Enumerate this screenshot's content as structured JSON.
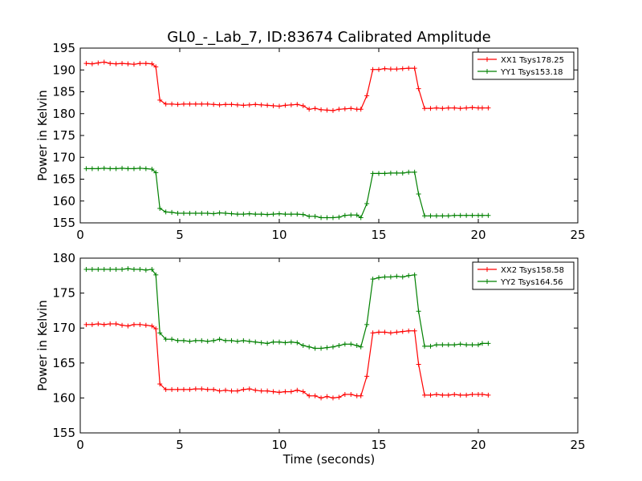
{
  "title": "GL0_-_Lab_7, ID:83674 Calibrated Amplitude",
  "chart_data": [
    {
      "type": "line",
      "xlabel": "",
      "ylabel": "Power in Kelvin",
      "xlim": [
        0,
        25
      ],
      "ylim": [
        155,
        195
      ],
      "xticks": [
        0,
        5,
        10,
        15,
        20,
        25
      ],
      "yticks": [
        155,
        160,
        165,
        170,
        175,
        180,
        185,
        190,
        195
      ],
      "grid": false,
      "legend_position": "top-right",
      "x": [
        0.3,
        0.6,
        0.9,
        1.2,
        1.5,
        1.8,
        2.1,
        2.4,
        2.7,
        3.0,
        3.3,
        3.6,
        3.8,
        4.0,
        4.3,
        4.6,
        4.9,
        5.2,
        5.5,
        5.8,
        6.1,
        6.4,
        6.7,
        7.0,
        7.3,
        7.6,
        7.9,
        8.2,
        8.5,
        8.8,
        9.1,
        9.4,
        9.7,
        10.0,
        10.3,
        10.6,
        10.9,
        11.2,
        11.5,
        11.8,
        12.1,
        12.4,
        12.7,
        13.0,
        13.3,
        13.6,
        13.9,
        14.1,
        14.4,
        14.7,
        15.0,
        15.3,
        15.6,
        15.9,
        16.2,
        16.5,
        16.8,
        17.0,
        17.3,
        17.6,
        17.9,
        18.2,
        18.5,
        18.8,
        19.1,
        19.4,
        19.7,
        20.0,
        20.2,
        20.5
      ],
      "series": [
        {
          "name": "XX1 Tsys178.25",
          "color": "#ff0000",
          "values": [
            191.5,
            191.4,
            191.6,
            191.8,
            191.5,
            191.4,
            191.5,
            191.4,
            191.3,
            191.5,
            191.5,
            191.4,
            190.7,
            183.1,
            182.2,
            182.2,
            182.1,
            182.2,
            182.2,
            182.2,
            182.2,
            182.2,
            182.1,
            182.0,
            182.1,
            182.1,
            182.0,
            181.9,
            182.0,
            182.1,
            182.0,
            181.9,
            181.8,
            181.7,
            181.9,
            182.0,
            182.1,
            181.8,
            181.0,
            181.2,
            180.9,
            180.8,
            180.7,
            181.0,
            181.1,
            181.2,
            181.0,
            181.0,
            184.1,
            190.1,
            190.1,
            190.3,
            190.2,
            190.2,
            190.3,
            190.4,
            190.4,
            185.7,
            181.2,
            181.2,
            181.3,
            181.2,
            181.3,
            181.3,
            181.2,
            181.3,
            181.4,
            181.3,
            181.3,
            181.3
          ]
        },
        {
          "name": "YY1 Tsys153.18",
          "color": "#008000",
          "values": [
            167.4,
            167.4,
            167.4,
            167.5,
            167.4,
            167.4,
            167.5,
            167.4,
            167.4,
            167.5,
            167.4,
            167.3,
            166.5,
            158.3,
            157.5,
            157.4,
            157.2,
            157.2,
            157.2,
            157.2,
            157.2,
            157.2,
            157.1,
            157.3,
            157.2,
            157.1,
            157.0,
            157.0,
            157.1,
            157.0,
            157.0,
            156.9,
            157.0,
            157.1,
            157.0,
            157.0,
            157.0,
            156.9,
            156.5,
            156.5,
            156.2,
            156.2,
            156.2,
            156.3,
            156.7,
            156.8,
            156.8,
            156.2,
            159.4,
            166.3,
            166.3,
            166.3,
            166.4,
            166.4,
            166.4,
            166.6,
            166.6,
            161.6,
            156.6,
            156.6,
            156.6,
            156.6,
            156.6,
            156.7,
            156.7,
            156.7,
            156.7,
            156.7,
            156.7,
            156.7
          ]
        }
      ]
    },
    {
      "type": "line",
      "xlabel": "Time (seconds)",
      "ylabel": "Power in Kelvin",
      "xlim": [
        0,
        25
      ],
      "ylim": [
        155,
        180
      ],
      "xticks": [
        0,
        5,
        10,
        15,
        20,
        25
      ],
      "yticks": [
        155,
        160,
        165,
        170,
        175,
        180
      ],
      "grid": false,
      "legend_position": "top-right",
      "x": [
        0.3,
        0.6,
        0.9,
        1.2,
        1.5,
        1.8,
        2.1,
        2.4,
        2.7,
        3.0,
        3.3,
        3.6,
        3.8,
        4.0,
        4.3,
        4.6,
        4.9,
        5.2,
        5.5,
        5.8,
        6.1,
        6.4,
        6.7,
        7.0,
        7.3,
        7.6,
        7.9,
        8.2,
        8.5,
        8.8,
        9.1,
        9.4,
        9.7,
        10.0,
        10.3,
        10.6,
        10.9,
        11.2,
        11.5,
        11.8,
        12.1,
        12.4,
        12.7,
        13.0,
        13.3,
        13.6,
        13.9,
        14.1,
        14.4,
        14.7,
        15.0,
        15.3,
        15.6,
        15.9,
        16.2,
        16.5,
        16.8,
        17.0,
        17.3,
        17.6,
        17.9,
        18.2,
        18.5,
        18.8,
        19.1,
        19.4,
        19.7,
        20.0,
        20.2,
        20.5
      ],
      "series": [
        {
          "name": "XX2 Tsys158.58",
          "color": "#ff0000",
          "values": [
            170.5,
            170.5,
            170.6,
            170.5,
            170.6,
            170.6,
            170.4,
            170.3,
            170.5,
            170.5,
            170.4,
            170.3,
            169.9,
            162.0,
            161.2,
            161.2,
            161.2,
            161.2,
            161.2,
            161.3,
            161.3,
            161.2,
            161.2,
            161.0,
            161.1,
            161.0,
            161.0,
            161.2,
            161.3,
            161.1,
            161.0,
            161.0,
            160.9,
            160.8,
            160.9,
            160.9,
            161.1,
            160.9,
            160.3,
            160.3,
            160.0,
            160.2,
            160.0,
            160.1,
            160.5,
            160.5,
            160.3,
            160.3,
            163.1,
            169.3,
            169.4,
            169.4,
            169.3,
            169.4,
            169.5,
            169.6,
            169.6,
            164.8,
            160.4,
            160.4,
            160.5,
            160.4,
            160.4,
            160.5,
            160.4,
            160.4,
            160.5,
            160.5,
            160.5,
            160.4
          ]
        },
        {
          "name": "YY2 Tsys164.56",
          "color": "#008000",
          "values": [
            178.4,
            178.4,
            178.4,
            178.4,
            178.4,
            178.4,
            178.4,
            178.5,
            178.4,
            178.4,
            178.3,
            178.4,
            177.6,
            169.3,
            168.4,
            168.4,
            168.2,
            168.2,
            168.1,
            168.2,
            168.2,
            168.1,
            168.2,
            168.4,
            168.2,
            168.2,
            168.1,
            168.2,
            168.1,
            168.0,
            167.9,
            167.8,
            168.0,
            168.0,
            167.9,
            168.0,
            167.9,
            167.5,
            167.3,
            167.1,
            167.1,
            167.2,
            167.3,
            167.5,
            167.7,
            167.7,
            167.5,
            167.3,
            170.5,
            177.0,
            177.2,
            177.3,
            177.3,
            177.4,
            177.3,
            177.5,
            177.6,
            172.4,
            167.4,
            167.4,
            167.6,
            167.6,
            167.6,
            167.6,
            167.7,
            167.6,
            167.6,
            167.6,
            167.8,
            167.8
          ]
        }
      ]
    }
  ]
}
